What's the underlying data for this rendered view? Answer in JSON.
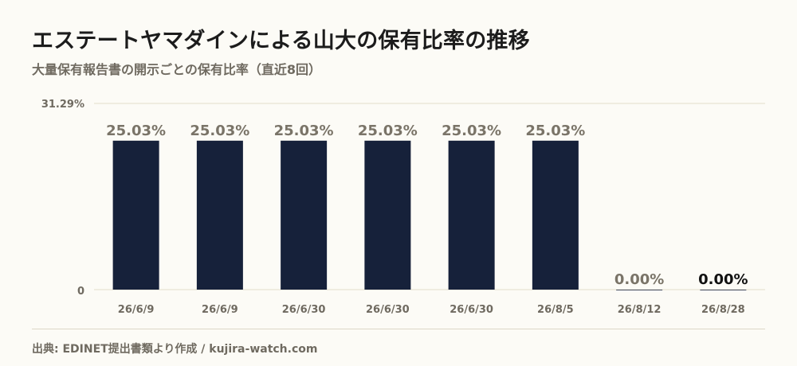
{
  "title": "エステートヤマダインによる山大の保有比率の推移",
  "subtitle": "大量保有報告書の開示ごとの保有比率（直近8回）",
  "source": "出典: EDINET提出書類より作成 / kujira-watch.com",
  "colors": {
    "bar": "#16213a",
    "background": "#fcfbf6",
    "label": "#7a7468",
    "label_last": "#111111",
    "axis_text": "#6f6a60",
    "gridline": "#e2ddcb"
  },
  "chart_data": {
    "type": "bar",
    "categories": [
      "26/6/9",
      "26/6/9",
      "26/6/30",
      "26/6/30",
      "26/6/30",
      "26/8/5",
      "26/8/12",
      "26/8/28"
    ],
    "values": [
      25.03,
      25.03,
      25.03,
      25.03,
      25.03,
      25.03,
      0.0,
      0.0
    ],
    "data_labels": [
      "25.03%",
      "25.03%",
      "25.03%",
      "25.03%",
      "25.03%",
      "25.03%",
      "0.00%",
      "0.00%"
    ],
    "ylim": [
      0,
      31.29
    ],
    "ytick_labels": [
      "0",
      "31.29%"
    ],
    "title": "エステートヤマダインによる山大の保有比率の推移",
    "xlabel": "",
    "ylabel": "",
    "grid": true,
    "legend": "none"
  }
}
